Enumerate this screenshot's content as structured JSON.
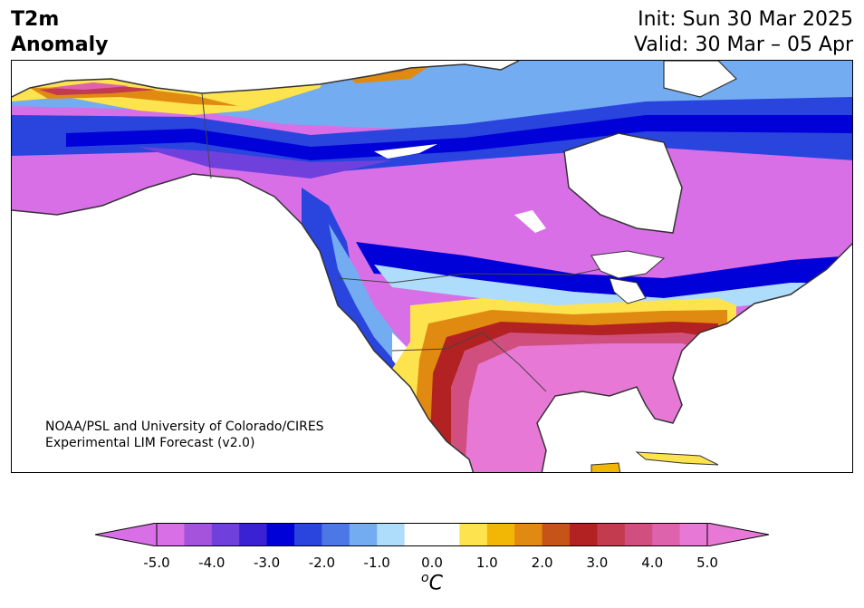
{
  "title": {
    "line1": "T2m",
    "line2": "Anomaly"
  },
  "header": {
    "init": "Init: Sun 30 Mar 2025",
    "valid": "Valid: 30 Mar – 05 Apr"
  },
  "credit": {
    "line1": "NOAA/PSL and University of Colorado/CIRES",
    "line2": "Experimental LIM Forecast (v2.0)"
  },
  "colorbar": {
    "ticks": [
      "-5.0",
      "-4.0",
      "-3.0",
      "-2.0",
      "-1.0",
      "0.0",
      "1.0",
      "2.0",
      "3.0",
      "4.0",
      "5.0"
    ],
    "unit_base": "C",
    "unit_sup": "o",
    "min": -5.0,
    "max": 5.0,
    "colors": [
      "#d86fe6",
      "#a553dd",
      "#7040dc",
      "#3a22d4",
      "#0000d8",
      "#2a44de",
      "#4b78e4",
      "#74acf2",
      "#aedcfb",
      "#ffffff",
      "#ffffff",
      "#fde34d",
      "#f2b705",
      "#e08a12",
      "#c65418",
      "#b22222",
      "#c23b4e",
      "#d04f7f",
      "#de63ad",
      "#e878d6"
    ],
    "under_color": "#d86fe6",
    "over_color": "#e878d6"
  }
}
